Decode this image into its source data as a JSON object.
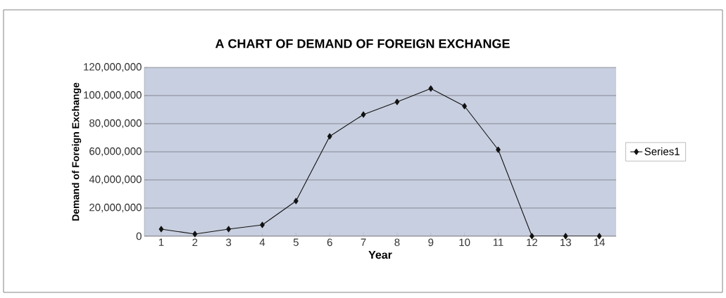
{
  "chart_data": {
    "type": "line",
    "title": "A CHART OF DEMAND OF FOREIGN EXCHANGE",
    "xlabel": "Year",
    "ylabel": "Demand of Foreign Exchange",
    "categories": [
      "1",
      "2",
      "3",
      "4",
      "5",
      "6",
      "7",
      "8",
      "9",
      "10",
      "11",
      "12",
      "13",
      "14"
    ],
    "series": [
      {
        "name": "Series1",
        "color": "#111111",
        "values": [
          5000000,
          1500000,
          5000000,
          8000000,
          25000000,
          71000000,
          86500000,
          95500000,
          105000000,
          92500000,
          61500000,
          0,
          0,
          0
        ]
      }
    ],
    "ylim": [
      0,
      120000000
    ],
    "yticks": [
      0,
      {
        "value": 20000000,
        "label": "20,000,000"
      },
      {
        "value": 40000000,
        "label": "40,000,000"
      },
      {
        "value": 60000000,
        "label": "60,000,000"
      },
      {
        "value": 80000000,
        "label": "80,000,000"
      },
      {
        "value": 100000000,
        "label": "100,000,000"
      },
      {
        "value": 120000000,
        "label": "120,000,000"
      }
    ],
    "grid": "y",
    "legend": "right",
    "marker": "diamond",
    "line_style": "solid"
  }
}
